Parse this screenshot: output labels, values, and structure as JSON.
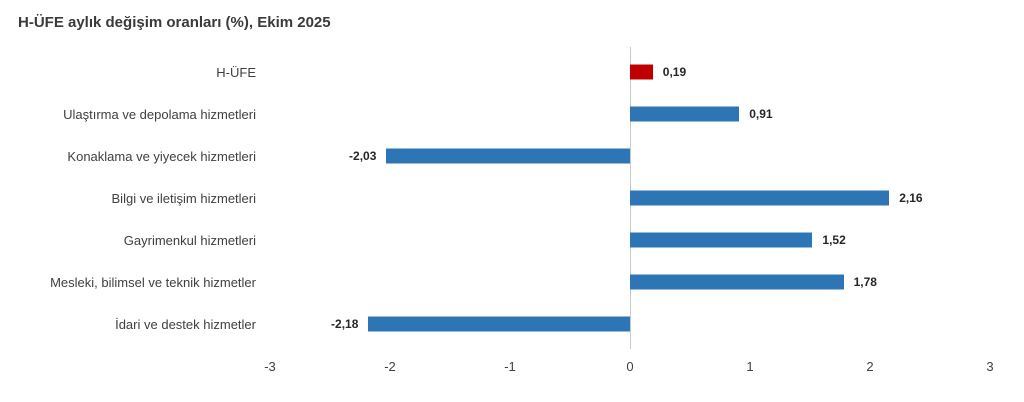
{
  "chart_data": {
    "type": "bar",
    "orientation": "horizontal",
    "title": "H-ÜFE aylık değişim oranları (%), Ekim 2025",
    "categories": [
      "H-ÜFE",
      "Ulaştırma ve depolama hizmetleri",
      "Konaklama ve yiyecek hizmetleri",
      "Bilgi ve iletişim hizmetleri",
      "Gayrimenkul hizmetleri",
      "Mesleki, bilimsel ve teknik hizmetler",
      "İdari ve destek hizmetler"
    ],
    "values": [
      0.19,
      0.91,
      -2.03,
      2.16,
      1.52,
      1.78,
      -2.18
    ],
    "value_labels": [
      "0,19",
      "0,91",
      "-2,03",
      "2,16",
      "1,52",
      "1,78",
      "-2,18"
    ],
    "colors": [
      "#c00000",
      "#2e75b6",
      "#2e75b6",
      "#2e75b6",
      "#2e75b6",
      "#2e75b6",
      "#2e75b6"
    ],
    "xlim": [
      -3,
      3
    ],
    "x_ticks": [
      "-3",
      "-2",
      "-1",
      "0",
      "1",
      "2",
      "3"
    ],
    "grid": false,
    "legend": false,
    "zero_line_color": "#c9c9c9"
  }
}
